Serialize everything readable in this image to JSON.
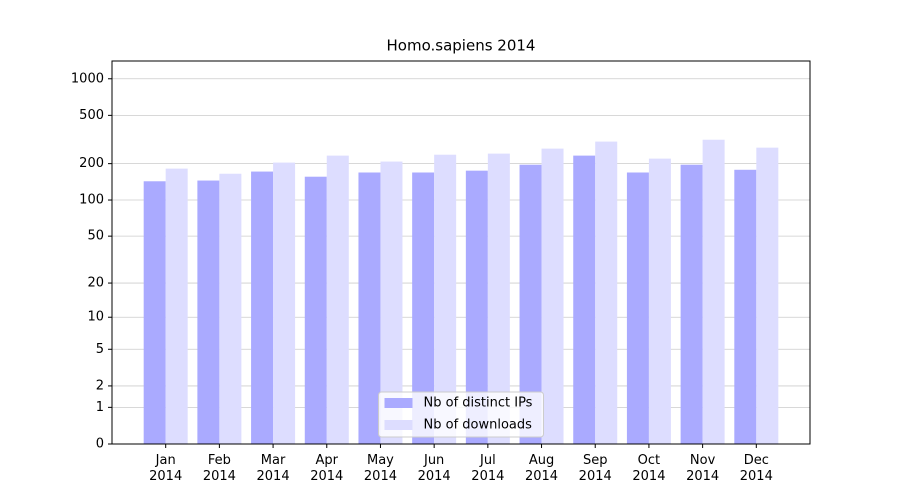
{
  "chart_data": {
    "type": "bar",
    "title": "Homo.sapiens 2014",
    "categories": [
      "Jan\n2014",
      "Feb\n2014",
      "Mar\n2014",
      "Apr\n2014",
      "May\n2014",
      "Jun\n2014",
      "Jul\n2014",
      "Aug\n2014",
      "Sep\n2014",
      "Oct\n2014",
      "Nov\n2014",
      "Dec\n2014"
    ],
    "series": [
      {
        "name": "Nb of distinct IPs",
        "color": "#aaaaff",
        "values": [
          143,
          145,
          172,
          156,
          169,
          169,
          175,
          196,
          233,
          169,
          196,
          178
        ]
      },
      {
        "name": "Nb of downloads",
        "color": "#ddddff",
        "values": [
          182,
          165,
          204,
          233,
          208,
          237,
          242,
          266,
          304,
          220,
          315,
          271
        ]
      }
    ],
    "yscale": "log1p",
    "ylim": [
      0,
      1400
    ],
    "yticks": [
      0,
      1,
      2,
      5,
      10,
      20,
      50,
      100,
      200,
      500,
      1000
    ],
    "grid": true,
    "legend": "lower center"
  }
}
